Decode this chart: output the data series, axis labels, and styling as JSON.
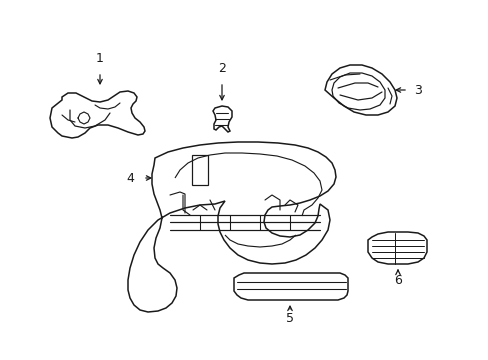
{
  "background_color": "#ffffff",
  "line_color": "#1a1a1a",
  "line_width": 1.1,
  "label_fontsize": 9,
  "figsize": [
    4.89,
    3.6
  ],
  "dpi": 100
}
